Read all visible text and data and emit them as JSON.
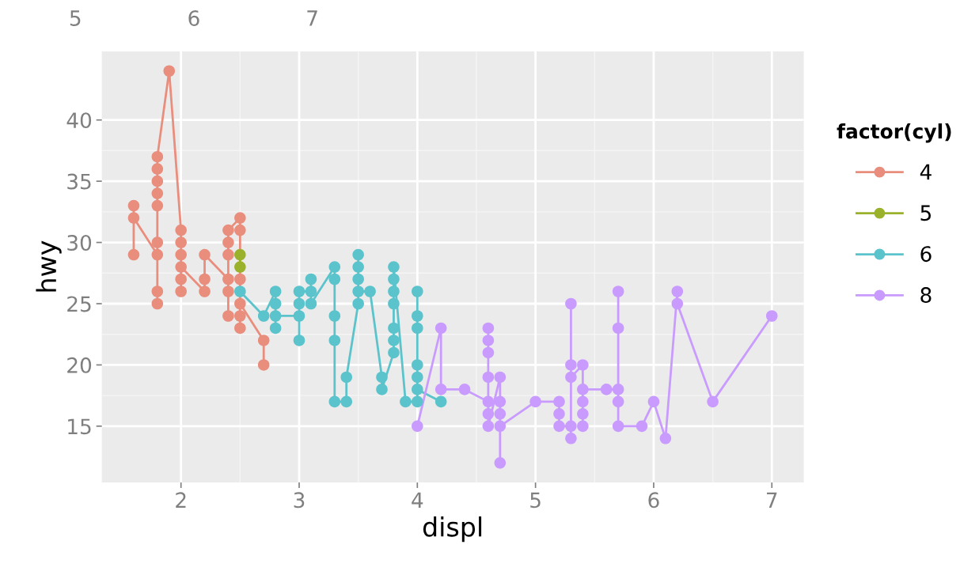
{
  "chart_data": {
    "type": "line",
    "xlabel": "displ",
    "ylabel": "hwy",
    "legend_title": "factor(cyl)",
    "legend": "right",
    "grid": true,
    "marker": "circle",
    "line_style": "solid",
    "xlim": [
      1.33,
      7.27
    ],
    "ylim": [
      10.4,
      45.6
    ],
    "xticks": [
      2,
      3,
      4,
      5,
      6,
      7
    ],
    "yticks": [
      15,
      20,
      25,
      30,
      35,
      40
    ],
    "annotations": [
      "5",
      "6",
      "7"
    ],
    "series": [
      {
        "name": "4",
        "color": "#e98d7d",
        "x": [
          1.6,
          1.6,
          1.6,
          1.8,
          1.8,
          1.8,
          1.8,
          1.8,
          1.8,
          1.8,
          1.8,
          1.8,
          1.9,
          2.0,
          2.0,
          2.0,
          2.0,
          2.0,
          2.0,
          2.2,
          2.2,
          2.2,
          2.4,
          2.4,
          2.4,
          2.4,
          2.4,
          2.4,
          2.5,
          2.5,
          2.5,
          2.5,
          2.5,
          2.5,
          2.7,
          2.7
        ],
        "values": [
          29,
          33,
          32,
          29,
          30,
          26,
          25,
          33,
          34,
          35,
          36,
          37,
          44,
          31,
          30,
          29,
          27,
          26,
          28,
          26,
          27,
          29,
          27,
          24,
          26,
          29,
          30,
          31,
          32,
          31,
          27,
          24,
          23,
          25,
          22,
          20
        ]
      },
      {
        "name": "5",
        "color": "#9ab22b",
        "x": [
          2.5,
          2.5
        ],
        "values": [
          29,
          28
        ]
      },
      {
        "name": "6",
        "color": "#5bc3cb",
        "x": [
          2.5,
          2.7,
          2.8,
          2.8,
          2.8,
          2.8,
          3.0,
          3.0,
          3.0,
          3.0,
          3.1,
          3.1,
          3.1,
          3.3,
          3.3,
          3.3,
          3.3,
          3.3,
          3.4,
          3.4,
          3.5,
          3.5,
          3.5,
          3.5,
          3.5,
          3.6,
          3.7,
          3.7,
          3.8,
          3.8,
          3.8,
          3.8,
          3.8,
          3.8,
          3.8,
          3.9,
          4.0,
          4.0,
          4.0,
          4.0,
          4.0,
          4.0,
          4.0,
          4.2
        ],
        "values": [
          26,
          24,
          26,
          25,
          23,
          24,
          24,
          22,
          25,
          26,
          26,
          27,
          25,
          28,
          27,
          24,
          22,
          17,
          17,
          19,
          25,
          29,
          28,
          27,
          26,
          26,
          19,
          18,
          21,
          22,
          23,
          25,
          26,
          27,
          28,
          17,
          17,
          26,
          24,
          23,
          20,
          19,
          18,
          17
        ]
      },
      {
        "name": "8",
        "color": "#c99bfe",
        "x": [
          4.0,
          4.2,
          4.2,
          4.4,
          4.6,
          4.6,
          4.6,
          4.6,
          4.6,
          4.6,
          4.6,
          4.7,
          4.7,
          4.7,
          4.7,
          4.7,
          5.0,
          5.2,
          5.2,
          5.2,
          5.3,
          5.3,
          5.3,
          5.3,
          5.3,
          5.4,
          5.4,
          5.4,
          5.4,
          5.4,
          5.6,
          5.7,
          5.7,
          5.7,
          5.7,
          5.7,
          5.9,
          6.0,
          6.1,
          6.2,
          6.2,
          6.5,
          7.0
        ],
        "values": [
          15,
          23,
          18,
          18,
          17,
          23,
          22,
          21,
          19,
          16,
          15,
          19,
          17,
          16,
          12,
          15,
          17,
          17,
          16,
          15,
          15,
          25,
          14,
          20,
          19,
          20,
          15,
          16,
          17,
          18,
          18,
          18,
          26,
          23,
          17,
          15,
          15,
          17,
          14,
          26,
          25,
          17,
          24
        ]
      }
    ]
  }
}
